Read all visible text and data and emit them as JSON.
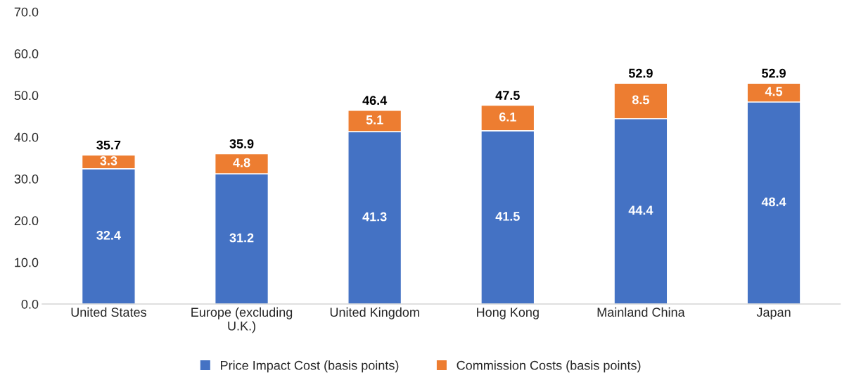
{
  "chart_data": {
    "type": "bar",
    "stacked": true,
    "categories": [
      "United States",
      "Europe (excluding\nU.K.)",
      "United Kingdom",
      "Hong Kong",
      "Mainland China",
      "Japan"
    ],
    "series": [
      {
        "name": "Price Impact Cost (basis points)",
        "color": "#4472c4",
        "values": [
          32.4,
          31.2,
          41.3,
          41.5,
          44.4,
          48.4
        ]
      },
      {
        "name": "Commission Costs (basis points)",
        "color": "#ed7d31",
        "values": [
          3.3,
          4.8,
          5.1,
          6.1,
          8.5,
          4.5
        ]
      }
    ],
    "totals": [
      "35.7",
      "35.9",
      "46.4",
      "47.5",
      "52.9",
      "52.9"
    ],
    "data_labels": true,
    "ylim": [
      0,
      70
    ],
    "yticks": [
      {
        "value": 0,
        "label": "0.0"
      },
      {
        "value": 10,
        "label": "10.0"
      },
      {
        "value": 20,
        "label": "20.0"
      },
      {
        "value": 30,
        "label": "30.0"
      },
      {
        "value": 40,
        "label": "40.0"
      },
      {
        "value": 50,
        "label": "50.0"
      },
      {
        "value": 60,
        "label": "60.0"
      },
      {
        "value": 70,
        "label": "70.0"
      }
    ],
    "grid": false,
    "legend": "bottom"
  }
}
